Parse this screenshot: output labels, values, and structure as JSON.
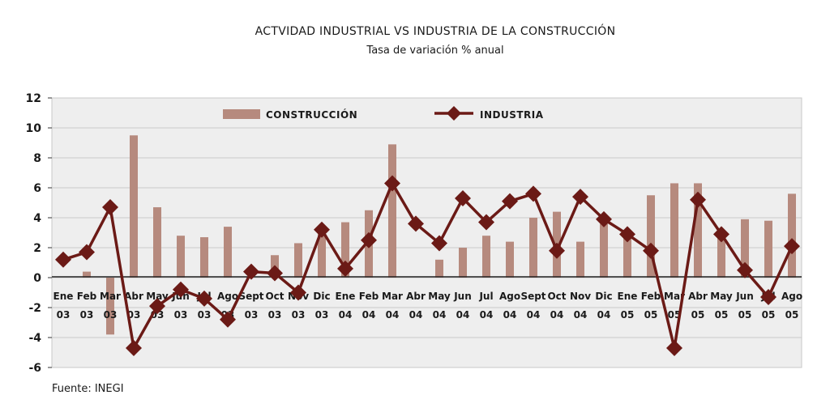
{
  "chart_data": {
    "type": "bar+line",
    "title": "ACTVIDAD INDUSTRIAL VS INDUSTRIA DE LA CONSTRUCCIÓN",
    "subtitle": "Tasa de variación % anual",
    "source": "Fuente: INEGI",
    "ylim": [
      -6,
      12
    ],
    "yticks": [
      -6,
      -4,
      -2,
      0,
      2,
      4,
      6,
      8,
      10,
      12
    ],
    "grid": true,
    "legend_position": "top",
    "categories": [
      {
        "month": "Ene",
        "year": "03"
      },
      {
        "month": "Feb",
        "year": "03"
      },
      {
        "month": "Mar",
        "year": "03"
      },
      {
        "month": "Abr",
        "year": "03"
      },
      {
        "month": "May",
        "year": "03"
      },
      {
        "month": "Jun",
        "year": "03"
      },
      {
        "month": "Jul",
        "year": "03"
      },
      {
        "month": "Ago",
        "year": "03"
      },
      {
        "month": "Sept",
        "year": "03"
      },
      {
        "month": "Oct",
        "year": "03"
      },
      {
        "month": "Nov",
        "year": "03"
      },
      {
        "month": "Dic",
        "year": "03"
      },
      {
        "month": "Ene",
        "year": "04"
      },
      {
        "month": "Feb",
        "year": "04"
      },
      {
        "month": "Mar",
        "year": "04"
      },
      {
        "month": "Abr",
        "year": "04"
      },
      {
        "month": "May",
        "year": "04"
      },
      {
        "month": "Jun",
        "year": "04"
      },
      {
        "month": "Jul",
        "year": "04"
      },
      {
        "month": "Ago",
        "year": "04"
      },
      {
        "month": "Sept",
        "year": "04"
      },
      {
        "month": "Oct",
        "year": "04"
      },
      {
        "month": "Nov",
        "year": "04"
      },
      {
        "month": "Dic",
        "year": "04"
      },
      {
        "month": "Ene",
        "year": "05"
      },
      {
        "month": "Feb",
        "year": "05"
      },
      {
        "month": "Mar",
        "year": "05"
      },
      {
        "month": "Abr",
        "year": "05"
      },
      {
        "month": "May",
        "year": "05"
      },
      {
        "month": "Jun",
        "year": "05"
      },
      {
        "month": "Jul",
        "year": "05"
      },
      {
        "month": "Ago",
        "year": "05"
      }
    ],
    "series": [
      {
        "name": "CONSTRUCCIÓN",
        "kind": "bar",
        "color": "#b68a7e",
        "values": [
          0.0,
          0.4,
          -3.8,
          9.5,
          4.7,
          2.8,
          2.7,
          3.4,
          0.0,
          1.5,
          2.3,
          3.0,
          3.7,
          4.5,
          8.9,
          0.0,
          1.2,
          2.0,
          2.8,
          2.4,
          4.0,
          4.4,
          2.4,
          3.6,
          2.9,
          5.5,
          6.3,
          6.3,
          2.8,
          3.9,
          3.8,
          5.6
        ]
      },
      {
        "name": "INDUSTRIA",
        "kind": "line",
        "color": "#6b1a16",
        "marker": "diamond",
        "values": [
          1.2,
          1.7,
          4.7,
          -4.7,
          -1.9,
          -0.8,
          -1.4,
          -2.8,
          0.4,
          0.3,
          -1.0,
          3.2,
          0.6,
          2.5,
          6.3,
          3.6,
          2.3,
          5.3,
          3.7,
          5.1,
          5.6,
          1.8,
          5.4,
          3.9,
          2.9,
          1.8,
          -4.7,
          5.2,
          2.9,
          0.5,
          -1.3,
          2.1
        ]
      }
    ]
  }
}
